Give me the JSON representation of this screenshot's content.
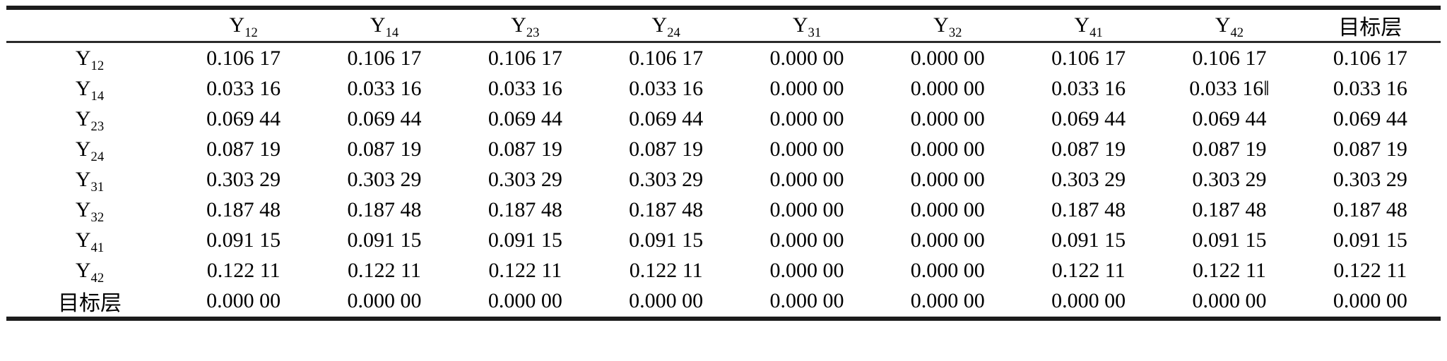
{
  "colors": {
    "text": "#000000",
    "background": "#ffffff",
    "rule_thick": "#1c1c1c",
    "rule_thin": "#2a2a2a"
  },
  "table": {
    "corner_label": "",
    "columns": [
      {
        "base": "Y",
        "sub": "12"
      },
      {
        "base": "Y",
        "sub": "14"
      },
      {
        "base": "Y",
        "sub": "23"
      },
      {
        "base": "Y",
        "sub": "24"
      },
      {
        "base": "Y",
        "sub": "31"
      },
      {
        "base": "Y",
        "sub": "32"
      },
      {
        "base": "Y",
        "sub": "41"
      },
      {
        "base": "Y",
        "sub": "42"
      },
      {
        "base": "目标层",
        "sub": ""
      }
    ],
    "rows": [
      {
        "label": {
          "base": "Y",
          "sub": "12"
        },
        "values": [
          "0.106 17",
          "0.106 17",
          "0.106 17",
          "0.106 17",
          "0.000 00",
          "0.000 00",
          "0.106 17",
          "0.106 17",
          "0.106 17"
        ]
      },
      {
        "label": {
          "base": "Y",
          "sub": "14"
        },
        "values": [
          "0.033 16",
          "0.033 16",
          "0.033 16",
          "0.033 16",
          "0.000 00",
          "0.000 00",
          "0.033 16",
          "0.033 16‖",
          "0.033 16"
        ]
      },
      {
        "label": {
          "base": "Y",
          "sub": "23"
        },
        "values": [
          "0.069 44",
          "0.069 44",
          "0.069 44",
          "0.069 44",
          "0.000 00",
          "0.000 00",
          "0.069 44",
          "0.069 44",
          "0.069 44"
        ]
      },
      {
        "label": {
          "base": "Y",
          "sub": "24"
        },
        "values": [
          "0.087 19",
          "0.087 19",
          "0.087 19",
          "0.087 19",
          "0.000 00",
          "0.000 00",
          "0.087 19",
          "0.087 19",
          "0.087 19"
        ]
      },
      {
        "label": {
          "base": "Y",
          "sub": "31"
        },
        "values": [
          "0.303 29",
          "0.303 29",
          "0.303 29",
          "0.303 29",
          "0.000 00",
          "0.000 00",
          "0.303 29",
          "0.303 29",
          "0.303 29"
        ]
      },
      {
        "label": {
          "base": "Y",
          "sub": "32"
        },
        "values": [
          "0.187 48",
          "0.187 48",
          "0.187 48",
          "0.187 48",
          "0.000 00",
          "0.000 00",
          "0.187 48",
          "0.187 48",
          "0.187 48"
        ]
      },
      {
        "label": {
          "base": "Y",
          "sub": "41"
        },
        "values": [
          "0.091 15",
          "0.091 15",
          "0.091 15",
          "0.091 15",
          "0.000 00",
          "0.000 00",
          "0.091 15",
          "0.091 15",
          "0.091 15"
        ]
      },
      {
        "label": {
          "base": "Y",
          "sub": "42"
        },
        "values": [
          "0.122 11",
          "0.122 11",
          "0.122 11",
          "0.122 11",
          "0.000 00",
          "0.000 00",
          "0.122 11",
          "0.122 11",
          "0.122 11"
        ]
      },
      {
        "label": {
          "base": "目标层",
          "sub": ""
        },
        "values": [
          "0.000 00",
          "0.000 00",
          "0.000 00",
          "0.000 00",
          "0.000 00",
          "0.000 00",
          "0.000 00",
          "0.000 00",
          "0.000 00"
        ]
      }
    ]
  }
}
